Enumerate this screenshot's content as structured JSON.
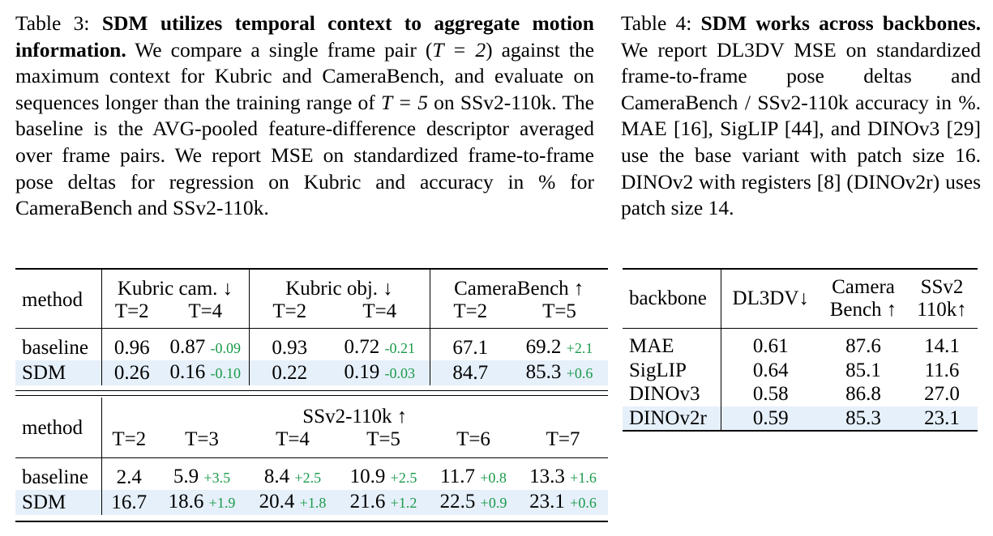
{
  "table3_caption": {
    "label": "Table 3: ",
    "title": "SDM utilizes temporal context to aggregate motion information.",
    "body_1": " We compare a single frame pair (",
    "math_1": "T = 2",
    "body_2": ") against the maximum context for Kubric and CameraBench, and evaluate on sequences longer than the training range of ",
    "math_2": "T = 5",
    "body_3": " on SSv2-110k. The baseline is the AVG-pooled feature-difference descriptor averaged over frame pairs. We report MSE on standardized frame-to-frame pose deltas for regression on Kubric and accuracy in % for CameraBench and SSv2-110k."
  },
  "table4_caption": {
    "label": "Table 4: ",
    "title": "SDM works across backbones.",
    "body": " We report DL3DV MSE on standardized frame-to-frame pose deltas and CameraBench / SSv2-110k accuracy in %. MAE [16], SigLIP [44], and DINOv3 [29] use the base variant with patch size 16. DINOv2 with registers [8] (DINOv2r) uses patch size 14."
  },
  "table3_top": {
    "method_header": "method",
    "groups": [
      "Kubric cam. ↓",
      "Kubric obj. ↓",
      "CameraBench ↑"
    ],
    "subheaders": [
      "T=2",
      "T=4",
      "T=2",
      "T=4",
      "T=2",
      "T=5"
    ],
    "rows": [
      {
        "method": "baseline",
        "cells": [
          {
            "v": "0.96",
            "d": ""
          },
          {
            "v": "0.87",
            "d": "-0.09"
          },
          {
            "v": "0.93",
            "d": ""
          },
          {
            "v": "0.72",
            "d": "-0.21"
          },
          {
            "v": "67.1",
            "d": ""
          },
          {
            "v": "69.2",
            "d": "+2.1"
          }
        ]
      },
      {
        "method": "SDM",
        "cells": [
          {
            "v": "0.26",
            "d": ""
          },
          {
            "v": "0.16",
            "d": "-0.10"
          },
          {
            "v": "0.22",
            "d": ""
          },
          {
            "v": "0.19",
            "d": "-0.03"
          },
          {
            "v": "84.7",
            "d": ""
          },
          {
            "v": "85.3",
            "d": "+0.6"
          }
        ]
      }
    ]
  },
  "table3_bottom": {
    "method_header": "method",
    "group": "SSv2-110k ↑",
    "subheaders": [
      "T=2",
      "T=3",
      "T=4",
      "T=5",
      "T=6",
      "T=7"
    ],
    "rows": [
      {
        "method": "baseline",
        "cells": [
          {
            "v": "2.4",
            "d": ""
          },
          {
            "v": "5.9",
            "d": "+3.5"
          },
          {
            "v": "8.4",
            "d": "+2.5"
          },
          {
            "v": "10.9",
            "d": "+2.5"
          },
          {
            "v": "11.7",
            "d": "+0.8"
          },
          {
            "v": "13.3",
            "d": "+1.6"
          }
        ]
      },
      {
        "method": "SDM",
        "cells": [
          {
            "v": "16.7",
            "d": ""
          },
          {
            "v": "18.6",
            "d": "+1.9"
          },
          {
            "v": "20.4",
            "d": "+1.8"
          },
          {
            "v": "21.6",
            "d": "+1.2"
          },
          {
            "v": "22.5",
            "d": "+0.9"
          },
          {
            "v": "23.1",
            "d": "+0.6"
          }
        ]
      }
    ]
  },
  "table4": {
    "headers": {
      "backbone": "backbone",
      "dl3dv": "DL3DV↓",
      "camera_l1": "Camera",
      "camera_l2": "Bench ↑",
      "ssv2_l1": "SSv2",
      "ssv2_l2": "110k↑"
    },
    "rows": [
      {
        "backbone": "MAE",
        "dl3dv": "0.61",
        "camera": "87.6",
        "ssv2": "14.1"
      },
      {
        "backbone": "SigLIP",
        "dl3dv": "0.64",
        "camera": "85.1",
        "ssv2": "11.6"
      },
      {
        "backbone": "DINOv3",
        "dl3dv": "0.58",
        "camera": "86.8",
        "ssv2": "27.0"
      },
      {
        "backbone": "DINOv2r",
        "dl3dv": "0.59",
        "camera": "85.3",
        "ssv2": "23.1"
      }
    ]
  }
}
